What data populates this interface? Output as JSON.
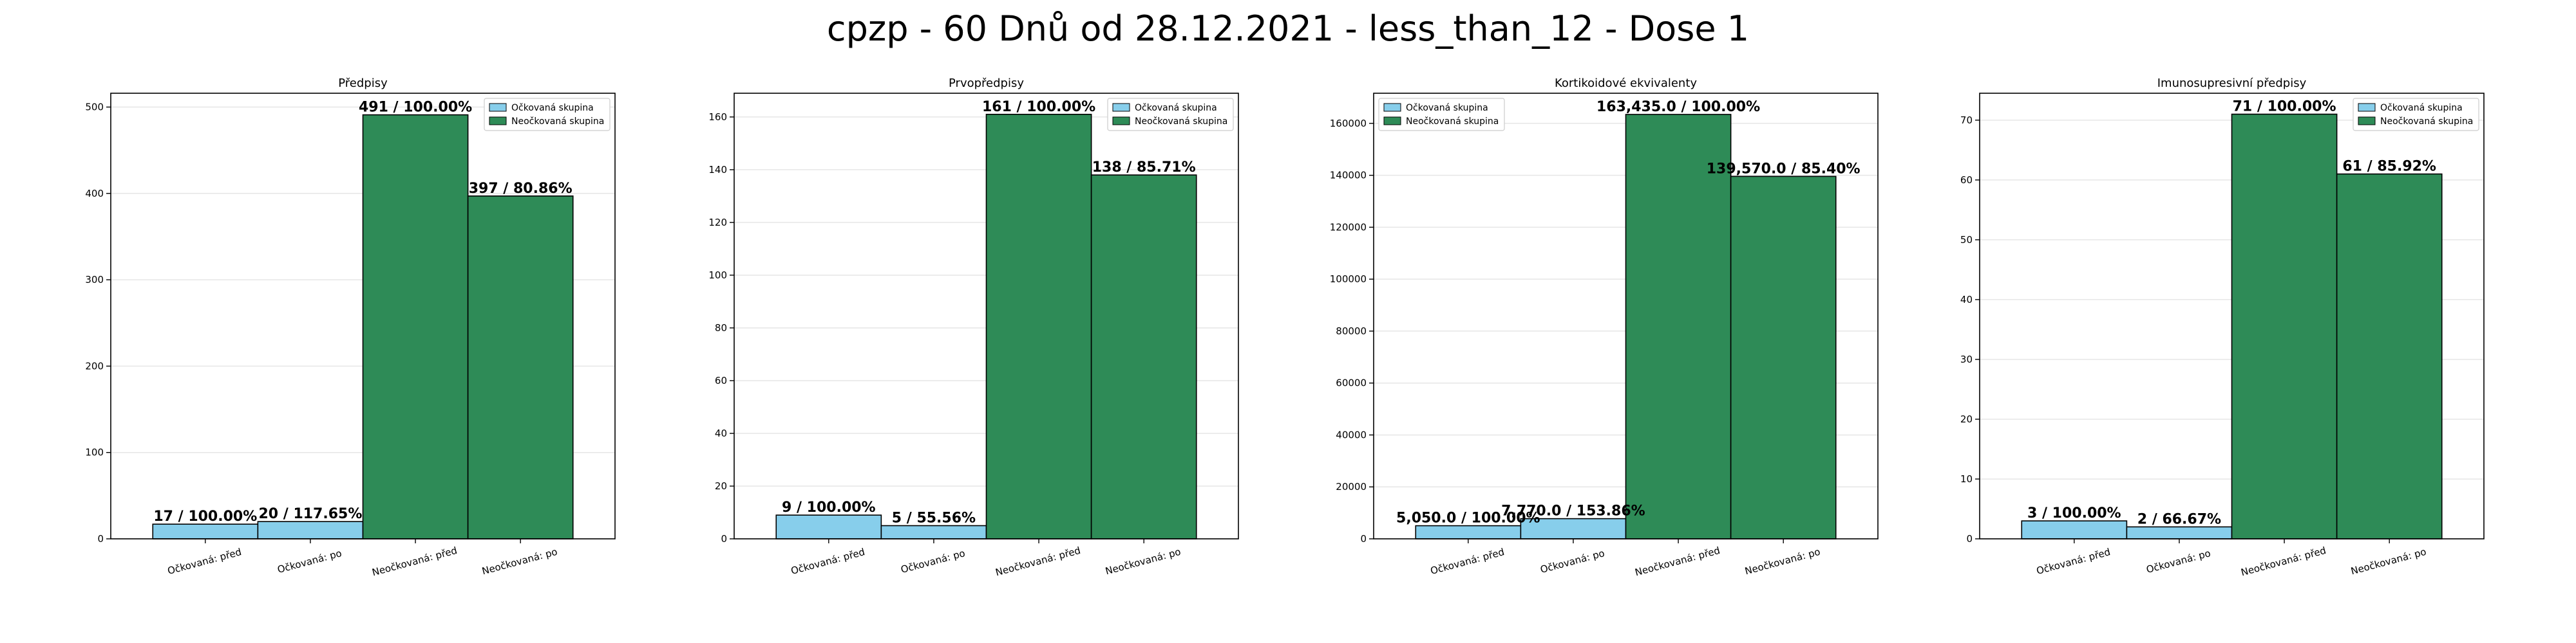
{
  "figure": {
    "title": "cpzp - 60 Dnů od 28.12.2021 - less_than_12 - Dose 1"
  },
  "colors": {
    "vaccinated": "#87ceeb",
    "unvaccinated": "#2e8b57",
    "bar_edge": "#000000"
  },
  "chart_data": [
    {
      "type": "bar",
      "title": "Předpisy",
      "categories": [
        "Očkovaná: před",
        "Očkovaná: po",
        "Neočkovaná: před",
        "Neočkovaná: po"
      ],
      "values": [
        17,
        20,
        491,
        397
      ],
      "bar_labels": [
        "17 / 100.00%",
        "20 / 117.65%",
        "491 / 100.00%",
        "397 / 80.86%"
      ],
      "bar_groups": [
        "Očkovaná skupina",
        "Očkovaná skupina",
        "Neočkovaná skupina",
        "Neočkovaná skupina"
      ],
      "ylim": [
        0,
        516
      ],
      "yticks": [
        0,
        100,
        200,
        300,
        400,
        500
      ],
      "ytick_labels": [
        "0",
        "100",
        "200",
        "300",
        "400",
        "500"
      ],
      "legend": [
        "Očkovaná skupina",
        "Neočkovaná skupina"
      ],
      "legend_position": "top-right",
      "grid": "horizontal"
    },
    {
      "type": "bar",
      "title": "Prvopředpisy",
      "categories": [
        "Očkovaná: před",
        "Očkovaná: po",
        "Neočkovaná: před",
        "Neočkovaná: po"
      ],
      "values": [
        9,
        5,
        161,
        138
      ],
      "bar_labels": [
        "9 / 100.00%",
        "5 / 55.56%",
        "161 / 100.00%",
        "138 / 85.71%"
      ],
      "bar_groups": [
        "Očkovaná skupina",
        "Očkovaná skupina",
        "Neočkovaná skupina",
        "Neočkovaná skupina"
      ],
      "ylim": [
        0,
        169
      ],
      "yticks": [
        0,
        20,
        40,
        60,
        80,
        100,
        120,
        140,
        160
      ],
      "ytick_labels": [
        "0",
        "20",
        "40",
        "60",
        "80",
        "100",
        "120",
        "140",
        "160"
      ],
      "legend": [
        "Očkovaná skupina",
        "Neočkovaná skupina"
      ],
      "legend_position": "top-right",
      "grid": "horizontal"
    },
    {
      "type": "bar",
      "title": "Kortikoidové ekvivalenty",
      "categories": [
        "Očkovaná: před",
        "Očkovaná: po",
        "Neočkovaná: před",
        "Neočkovaná: po"
      ],
      "values": [
        5050.0,
        7770.0,
        163435.0,
        139570.0
      ],
      "bar_labels": [
        "5,050.0 / 100.00%",
        "7,770.0 / 153.86%",
        "163,435.0 / 100.00%",
        "139,570.0 / 85.40%"
      ],
      "bar_groups": [
        "Očkovaná skupina",
        "Očkovaná skupina",
        "Neočkovaná skupina",
        "Neočkovaná skupina"
      ],
      "ylim": [
        0,
        171600
      ],
      "yticks": [
        0,
        20000,
        40000,
        60000,
        80000,
        100000,
        120000,
        140000,
        160000
      ],
      "ytick_labels": [
        "0",
        "20000",
        "40000",
        "60000",
        "80000",
        "100000",
        "120000",
        "140000",
        "160000"
      ],
      "legend": [
        "Očkovaná skupina",
        "Neočkovaná skupina"
      ],
      "legend_position": "top-left",
      "grid": "horizontal"
    },
    {
      "type": "bar",
      "title": "Imunosupresivní předpisy",
      "categories": [
        "Očkovaná: před",
        "Očkovaná: po",
        "Neočkovaná: před",
        "Neočkovaná: po"
      ],
      "values": [
        3,
        2,
        71,
        61
      ],
      "bar_labels": [
        "3 / 100.00%",
        "2 / 66.67%",
        "71 / 100.00%",
        "61 / 85.92%"
      ],
      "bar_groups": [
        "Očkovaná skupina",
        "Očkovaná skupina",
        "Neočkovaná skupina",
        "Neočkovaná skupina"
      ],
      "ylim": [
        0,
        74.5
      ],
      "yticks": [
        0,
        10,
        20,
        30,
        40,
        50,
        60,
        70
      ],
      "ytick_labels": [
        "0",
        "10",
        "20",
        "30",
        "40",
        "50",
        "60",
        "70"
      ],
      "legend": [
        "Očkovaná skupina",
        "Neočkovaná skupina"
      ],
      "legend_position": "top-right",
      "grid": "horizontal"
    }
  ]
}
